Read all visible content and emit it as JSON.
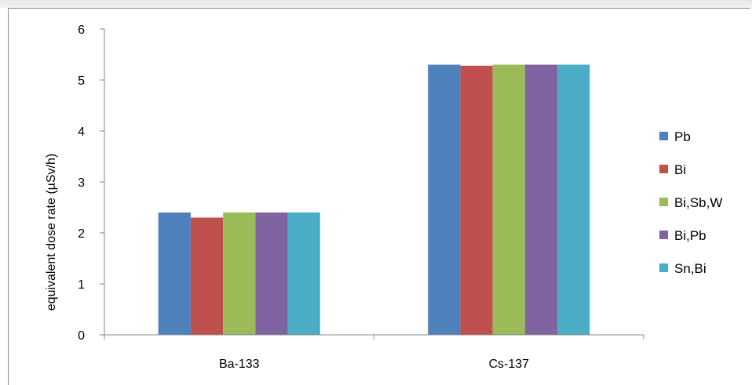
{
  "chart_data": {
    "type": "bar",
    "title": "",
    "xlabel": "",
    "ylabel": "equivalent dose rate (µSv/h)",
    "ylim": [
      0,
      6
    ],
    "yticks": [
      "0",
      "1",
      "2",
      "3",
      "4",
      "5",
      "6"
    ],
    "categories": [
      "Ba-133",
      "Cs-137"
    ],
    "series": [
      {
        "name": "Pb",
        "color": "#4f81bd",
        "values": [
          2.4,
          5.3
        ]
      },
      {
        "name": "Bi",
        "color": "#c0504d",
        "values": [
          2.3,
          5.28
        ]
      },
      {
        "name": "Bi,Sb,W",
        "color": "#9bbb59",
        "values": [
          2.4,
          5.3
        ]
      },
      {
        "name": "Bi,Pb",
        "color": "#8064a2",
        "values": [
          2.4,
          5.3
        ]
      },
      {
        "name": "Sn,Bi",
        "color": "#4bacc6",
        "values": [
          2.4,
          5.3
        ]
      }
    ],
    "grid": false,
    "legend_position": "right"
  }
}
